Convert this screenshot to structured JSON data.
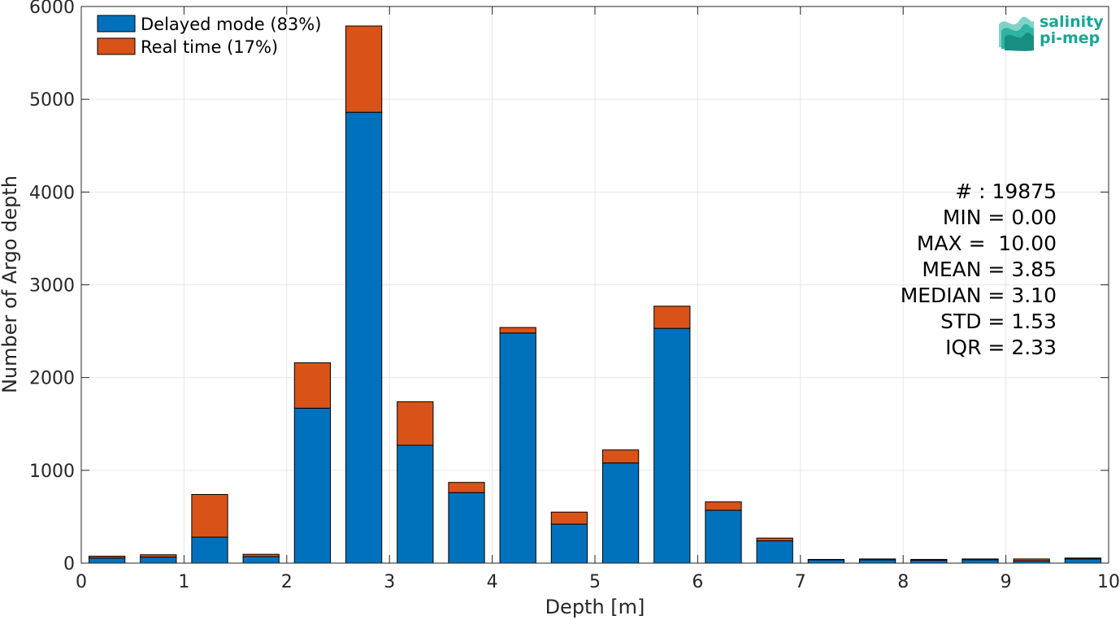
{
  "chart_data": {
    "type": "bar",
    "stacked": true,
    "xlabel": "Depth [m]",
    "ylabel": "Number of Argo depth",
    "xlim": [
      0,
      10
    ],
    "ylim": [
      0,
      6000
    ],
    "xticks": [
      0,
      1,
      2,
      3,
      4,
      5,
      6,
      7,
      8,
      9,
      10
    ],
    "yticks": [
      0,
      1000,
      2000,
      3000,
      4000,
      5000,
      6000
    ],
    "grid": true,
    "legend_position": "top-left",
    "bin_width": 0.5,
    "x": [
      0.25,
      0.75,
      1.25,
      1.75,
      2.25,
      2.75,
      3.25,
      3.75,
      4.25,
      4.75,
      5.25,
      5.75,
      6.25,
      6.75,
      7.25,
      7.75,
      8.25,
      8.75,
      9.25,
      9.75
    ],
    "series": [
      {
        "name": "Delayed mode (83%)",
        "color": "#0072bd",
        "values": [
          55,
          65,
          280,
          70,
          1670,
          4860,
          1270,
          760,
          2480,
          420,
          1080,
          2530,
          570,
          240,
          35,
          35,
          30,
          35,
          25,
          45
        ]
      },
      {
        "name": "Real time (17%)",
        "color": "#d95319",
        "values": [
          20,
          25,
          460,
          25,
          490,
          930,
          470,
          110,
          60,
          130,
          140,
          240,
          90,
          30,
          5,
          10,
          10,
          10,
          20,
          10
        ]
      }
    ],
    "stats": [
      "# : 19875",
      "MIN = 0.00",
      "MAX =  10.00",
      "MEAN = 3.85",
      "MEDIAN = 3.10",
      "STD = 1.53",
      "IQR = 2.33"
    ]
  },
  "logo": {
    "line1": "salinity",
    "line2": "pi-mep",
    "color": "#1aa595"
  }
}
